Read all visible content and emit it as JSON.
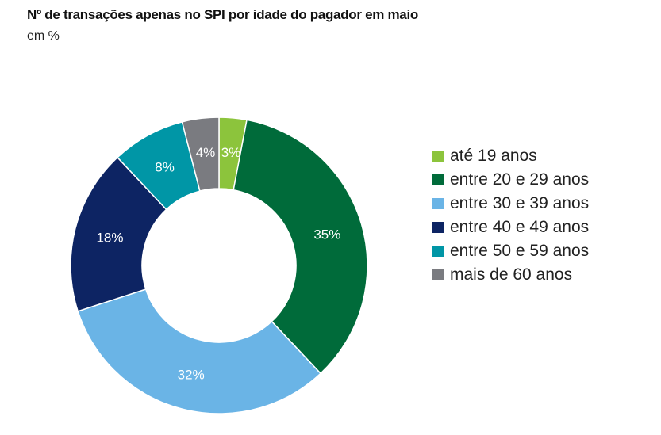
{
  "chart_data": {
    "type": "pie",
    "variant": "donut",
    "title": "Nº de transações apenas no SPI por idade do pagador em maio",
    "subtitle": "em %",
    "categories": [
      "até 19 anos",
      "entre 20 e 29 anos",
      "entre 30 e 39 anos",
      "entre 40 e 49 anos",
      "entre 50 e 59 anos",
      "mais de 60 anos"
    ],
    "values": [
      3,
      35,
      32,
      18,
      8,
      4
    ],
    "labels": [
      "3%",
      "35%",
      "32%",
      "18%",
      "8%",
      "4%"
    ],
    "colors": [
      "#8cc43c",
      "#006b3a",
      "#6ab4e6",
      "#0d2463",
      "#0096a6",
      "#7a7b80"
    ],
    "legend_position": "right"
  }
}
